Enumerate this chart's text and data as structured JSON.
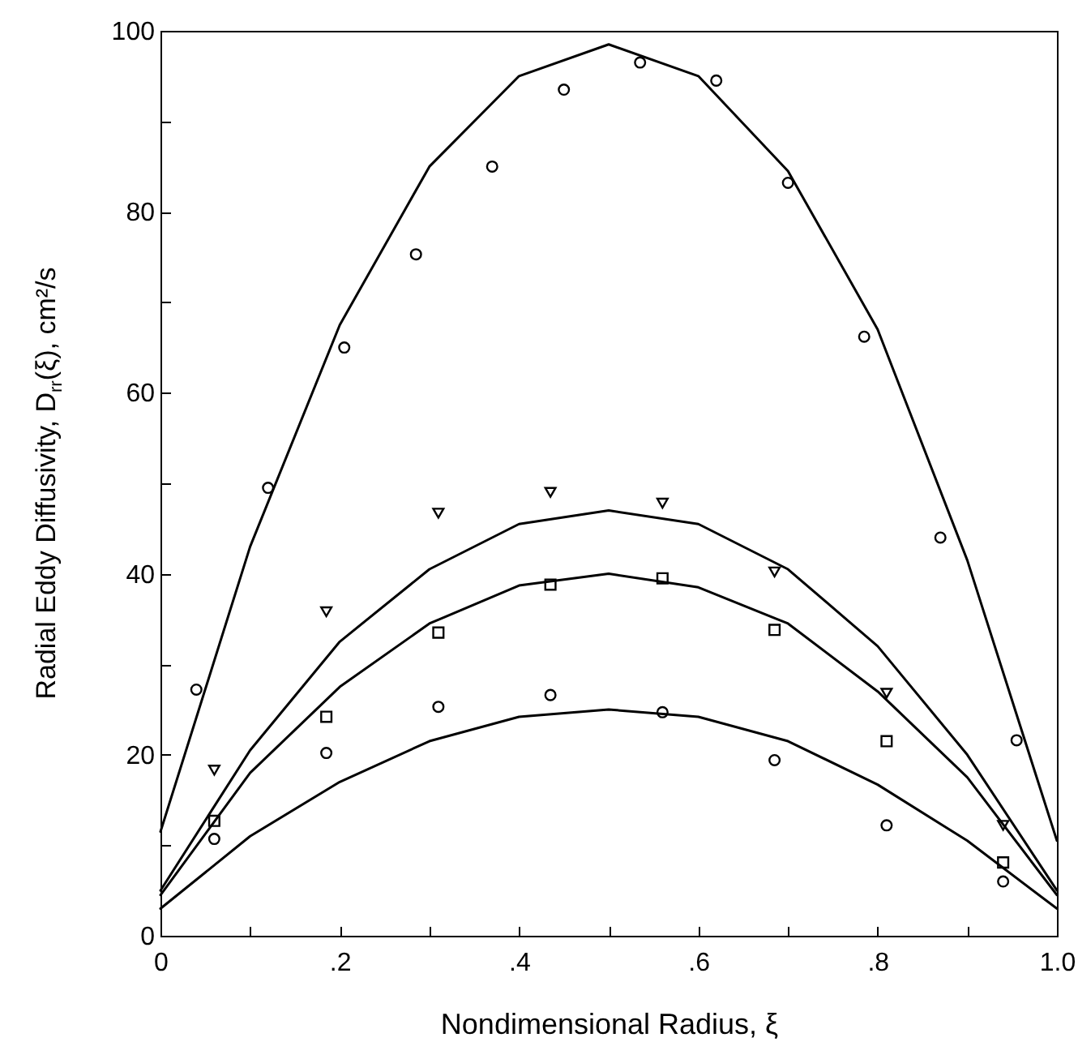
{
  "chart_data": {
    "type": "scatter",
    "xlabel": "Nondimensional Radius, ξ",
    "ylabel": "Radial Eddy Diffusivity, D$_{rr}$(ξ), cm²/s",
    "xlim": [
      0,
      1
    ],
    "xticks": [
      0,
      {
        "value": 0.1,
        "label": null
      },
      {
        "value": 0.2,
        "label": ".2"
      },
      {
        "value": 0.3,
        "label": null
      },
      {
        "value": 0.4,
        "label": ".4"
      },
      {
        "value": 0.5,
        "label": null
      },
      {
        "value": 0.6,
        "label": ".6"
      },
      {
        "value": 0.7,
        "label": null
      },
      {
        "value": 0.8,
        "label": ".8"
      },
      {
        "value": 0.9,
        "label": null
      },
      {
        "value": 1,
        "label": "1.0"
      }
    ],
    "ylim": [
      0,
      100
    ],
    "yticks": [
      0,
      {
        "value": 10,
        "label": null
      },
      20,
      {
        "value": 30,
        "label": null
      },
      40,
      {
        "value": 50,
        "label": null
      },
      60,
      {
        "value": 70,
        "label": null
      },
      80,
      {
        "value": 90,
        "label": null
      },
      100
    ],
    "grid": false,
    "series": [
      {
        "marker": "circle",
        "color": "#000000",
        "x": [
          0.04,
          0.12,
          0.205,
          0.285,
          0.37,
          0.45,
          0.535,
          0.62,
          0.7,
          0.785,
          0.87,
          0.955
        ],
        "values": [
          27.2,
          49.5,
          65,
          75.3,
          85,
          93.5,
          96.5,
          94.5,
          83.2,
          66.2,
          44,
          21.6
        ]
      },
      {
        "marker": "triangle",
        "color": "#000000",
        "x": [
          0.06,
          0.185,
          0.31,
          0.435,
          0.56,
          0.685,
          0.81,
          0.94
        ],
        "values": [
          18.3,
          35.8,
          46.7,
          49,
          47.8,
          40.2,
          26.8,
          12.2
        ]
      },
      {
        "marker": "square",
        "color": "#000000",
        "x": [
          0.06,
          0.185,
          0.31,
          0.435,
          0.56,
          0.685,
          0.81,
          0.94
        ],
        "values": [
          12.7,
          24.2,
          33.5,
          38.8,
          39.5,
          33.8,
          21.5,
          8.1
        ]
      },
      {
        "marker": "circle",
        "color": "#000000",
        "x": [
          0.06,
          0.185,
          0.31,
          0.435,
          0.56,
          0.685,
          0.81,
          0.94
        ],
        "values": [
          10.7,
          20.2,
          25.3,
          26.6,
          24.7,
          19.4,
          12.2,
          6
        ]
      },
      {
        "type": "line",
        "line_style": "solid",
        "color": "#000000",
        "x": [
          0,
          0.1,
          0.2,
          0.3,
          0.4,
          0.5,
          0.6,
          0.7,
          0.8,
          0.9,
          1
        ],
        "values": [
          11.5,
          43,
          67.5,
          85,
          95,
          98.5,
          95,
          84.5,
          67,
          41.5,
          10.5
        ]
      },
      {
        "type": "line",
        "line_style": "solid",
        "color": "#000000",
        "x": [
          0,
          0.1,
          0.2,
          0.3,
          0.4,
          0.5,
          0.6,
          0.7,
          0.8,
          0.9,
          1
        ],
        "values": [
          5,
          20.5,
          32.5,
          40.5,
          45.5,
          47,
          45.5,
          40.5,
          32,
          20,
          5
        ]
      },
      {
        "type": "line",
        "line_style": "solid",
        "color": "#000000",
        "x": [
          0,
          0.1,
          0.2,
          0.3,
          0.4,
          0.5,
          0.6,
          0.7,
          0.8,
          0.9,
          1
        ],
        "values": [
          4.5,
          18,
          27.5,
          34.5,
          38.7,
          40,
          38.5,
          34.5,
          27,
          17.5,
          4.5
        ]
      },
      {
        "type": "line",
        "line_style": "solid",
        "color": "#000000",
        "x": [
          0,
          0.1,
          0.2,
          0.3,
          0.4,
          0.5,
          0.6,
          0.7,
          0.8,
          0.9,
          1
        ],
        "values": [
          3,
          11,
          17,
          21.5,
          24.2,
          25,
          24.2,
          21.5,
          16.7,
          10.5,
          3
        ]
      }
    ]
  }
}
